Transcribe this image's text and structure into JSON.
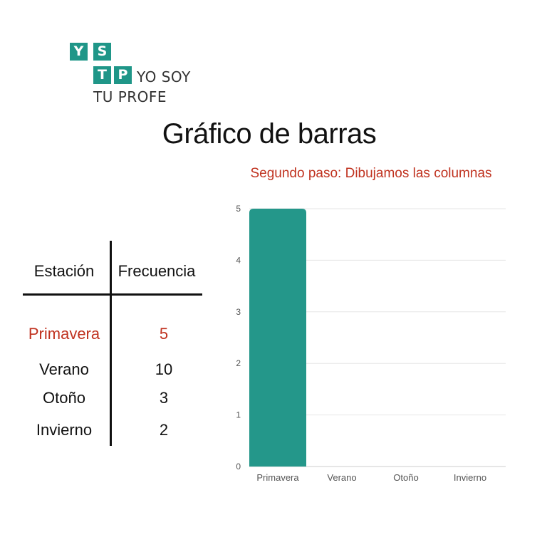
{
  "logo": {
    "letters": [
      "Y",
      "S",
      "T",
      "P"
    ],
    "line1": "YO SOY",
    "line2": "TU PROFE",
    "color": "#1f9688"
  },
  "page_title": "Gráfico de barras",
  "table": {
    "headers": [
      "Estación",
      "Frecuencia"
    ],
    "rows": [
      {
        "label": "Primavera",
        "value": "5",
        "highlight": true
      },
      {
        "label": "Verano",
        "value": "10",
        "highlight": false
      },
      {
        "label": "Otoño",
        "value": "3",
        "highlight": false
      },
      {
        "label": "Invierno",
        "value": "2",
        "highlight": false
      }
    ],
    "highlight_color": "#c0321f"
  },
  "chart_data": {
    "type": "bar",
    "title": "Segundo paso: Dibujamos las columnas",
    "title_color": "#c0321f",
    "categories": [
      "Primavera",
      "Verano",
      "Otoño",
      "Invierno"
    ],
    "values": [
      5,
      null,
      null,
      null
    ],
    "bar_color": "#24978a",
    "ylim": [
      0,
      5
    ],
    "yticks": [
      0,
      1,
      2,
      3,
      4,
      5
    ],
    "xlabel": "",
    "ylabel": "",
    "grid": true,
    "legend": "none"
  }
}
